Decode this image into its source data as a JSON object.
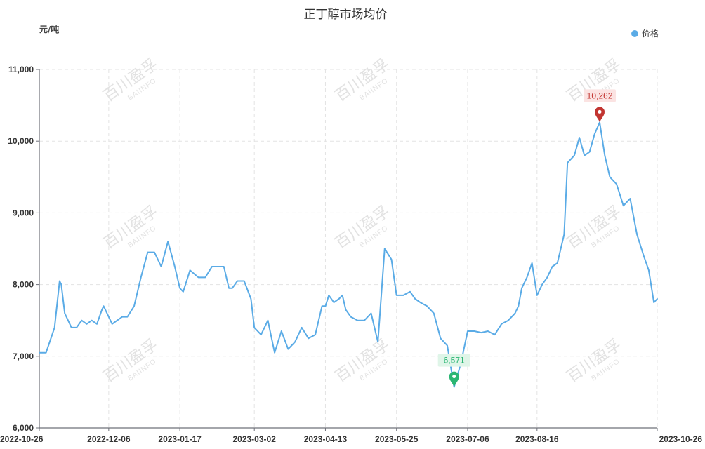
{
  "chart_data": {
    "type": "line",
    "title": "正丁醇市场均价",
    "ylabel": "元/吨",
    "ylim": [
      6000,
      11000
    ],
    "yticks": [
      6000,
      7000,
      8000,
      9000,
      10000,
      11000
    ],
    "yticklabels": [
      "6,000",
      "7,000",
      "8,000",
      "9,000",
      "10,000",
      "11,000"
    ],
    "xlim": [
      "2022-10-26",
      "2023-10-26"
    ],
    "xticks": [
      "2022-10-26",
      "2022-12-06",
      "2023-01-17",
      "2023-03-02",
      "2023-04-13",
      "2023-05-25",
      "2023-07-06",
      "2023-08-16",
      "2023-10-26"
    ],
    "grid": true,
    "legend": "top-right",
    "series": [
      {
        "name": "价格",
        "color": "#5aabe6",
        "x": [
          "2022-10-26",
          "2022-10-30",
          "2022-11-04",
          "2022-11-07",
          "2022-11-08",
          "2022-11-10",
          "2022-11-14",
          "2022-11-17",
          "2022-11-20",
          "2022-11-23",
          "2022-11-26",
          "2022-11-29",
          "2022-12-02",
          "2022-12-03",
          "2022-12-05",
          "2022-12-08",
          "2022-12-11",
          "2022-12-14",
          "2022-12-17",
          "2022-12-21",
          "2022-12-25",
          "2022-12-29",
          "2023-01-02",
          "2023-01-06",
          "2023-01-10",
          "2023-01-14",
          "2023-01-17",
          "2023-01-19",
          "2023-01-23",
          "2023-01-28",
          "2023-02-01",
          "2023-02-05",
          "2023-02-09",
          "2023-02-12",
          "2023-02-15",
          "2023-02-17",
          "2023-02-20",
          "2023-02-24",
          "2023-02-28",
          "2023-03-02",
          "2023-03-06",
          "2023-03-10",
          "2023-03-14",
          "2023-03-18",
          "2023-03-22",
          "2023-03-26",
          "2023-03-30",
          "2023-04-03",
          "2023-04-07",
          "2023-04-11",
          "2023-04-13",
          "2023-04-15",
          "2023-04-18",
          "2023-04-21",
          "2023-04-23",
          "2023-04-25",
          "2023-04-28",
          "2023-05-02",
          "2023-05-06",
          "2023-05-10",
          "2023-05-14",
          "2023-05-18",
          "2023-05-22",
          "2023-05-25",
          "2023-05-29",
          "2023-06-02",
          "2023-06-05",
          "2023-06-08",
          "2023-06-12",
          "2023-06-16",
          "2023-06-20",
          "2023-06-24",
          "2023-06-28",
          "2023-07-02",
          "2023-07-06",
          "2023-07-10",
          "2023-07-14",
          "2023-07-18",
          "2023-07-22",
          "2023-07-26",
          "2023-07-30",
          "2023-08-03",
          "2023-08-05",
          "2023-08-07",
          "2023-08-10",
          "2023-08-13",
          "2023-08-16",
          "2023-08-19",
          "2023-08-22",
          "2023-08-25",
          "2023-08-28",
          "2023-09-01",
          "2023-09-03",
          "2023-09-07",
          "2023-09-10",
          "2023-09-13",
          "2023-09-16",
          "2023-09-19",
          "2023-09-22",
          "2023-09-25",
          "2023-09-28",
          "2023-10-02",
          "2023-10-06",
          "2023-10-10",
          "2023-10-14",
          "2023-10-18",
          "2023-10-21",
          "2023-10-24",
          "2023-10-26"
        ],
        "values": [
          7050,
          7050,
          7400,
          8050,
          8000,
          7600,
          7400,
          7400,
          7500,
          7450,
          7500,
          7450,
          7650,
          7700,
          7600,
          7450,
          7500,
          7550,
          7550,
          7700,
          8100,
          8450,
          8450,
          8250,
          8600,
          8250,
          7950,
          7900,
          8200,
          8100,
          8100,
          8250,
          8250,
          8250,
          7950,
          7950,
          8050,
          8050,
          7800,
          7400,
          7300,
          7500,
          7050,
          7350,
          7100,
          7200,
          7400,
          7250,
          7300,
          7700,
          7700,
          7850,
          7750,
          7800,
          7850,
          7650,
          7550,
          7500,
          7500,
          7600,
          7200,
          8500,
          8350,
          7850,
          7850,
          7900,
          7800,
          7750,
          7700,
          7600,
          7250,
          7150,
          6571,
          6900,
          7350,
          7350,
          7330,
          7350,
          7300,
          7450,
          7500,
          7600,
          7700,
          7950,
          8100,
          8300,
          7850,
          8000,
          8100,
          8250,
          8300,
          8700,
          9700,
          9800,
          10050,
          9800,
          9850,
          10100,
          10262,
          9800,
          9500,
          9400,
          9100,
          9200,
          8700,
          8400,
          8200,
          7750,
          7800
        ]
      }
    ],
    "annotations": [
      {
        "type": "max",
        "date": "2023-09-22",
        "value": 10262,
        "label": "10,262",
        "color": "#c23531"
      },
      {
        "type": "min",
        "date": "2023-06-28",
        "value": 6571,
        "label": "6,571",
        "color": "#2bb673"
      }
    ],
    "watermark": {
      "text": "百川盈孚",
      "sub": "BAIINFO"
    }
  }
}
